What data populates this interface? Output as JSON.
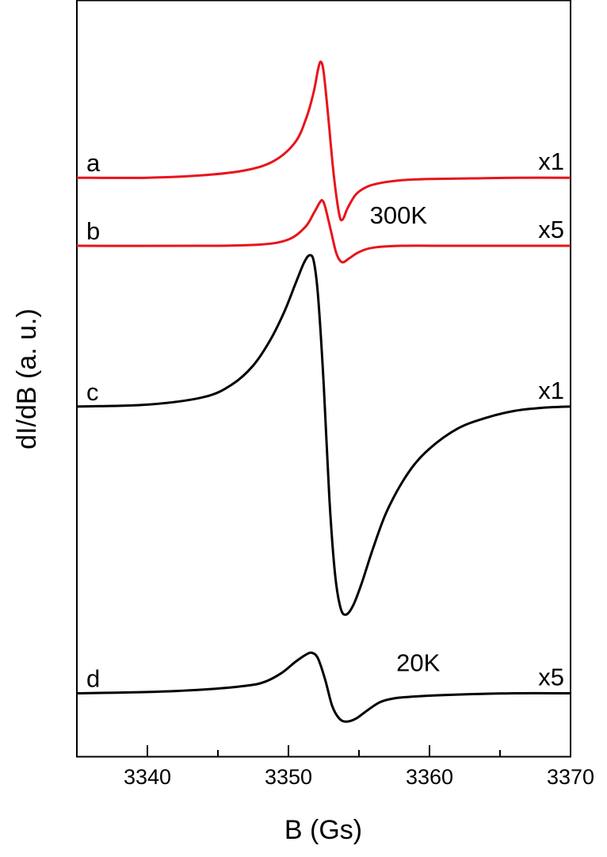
{
  "chart_data": {
    "type": "line",
    "xlabel": "B (Gs)",
    "ylabel": "dI/dB (a. u.)",
    "xlim": [
      3335,
      3370
    ],
    "xticks": [
      3340,
      3350,
      3360,
      3370
    ],
    "grid": false,
    "temperature_labels": [
      {
        "text": "300K",
        "x": 3357.8,
        "y": 8.45
      },
      {
        "text": "20K",
        "x": 3359.2,
        "y": 1.35
      }
    ],
    "series": [
      {
        "name": "a",
        "scale_label": "x1",
        "color": "#e8141b",
        "x": [
          3335,
          3340,
          3344,
          3347,
          3349,
          3350.5,
          3351.3,
          3351.8,
          3352.1,
          3352.3,
          3352.5,
          3352.8,
          3353.2,
          3353.6,
          3353.85,
          3354.2,
          3354.8,
          3355.6,
          3356.6,
          3358,
          3360,
          3363,
          3366,
          3370
        ],
        "y": [
          9.18,
          9.18,
          9.22,
          9.3,
          9.45,
          9.75,
          10.15,
          10.55,
          10.9,
          11.02,
          10.85,
          10.2,
          9.25,
          8.6,
          8.52,
          8.7,
          8.92,
          9.04,
          9.1,
          9.14,
          9.16,
          9.17,
          9.18,
          9.18
        ]
      },
      {
        "name": "b",
        "scale_label": "x5",
        "color": "#e8141b",
        "x": [
          3335,
          3344,
          3348,
          3350,
          3351.2,
          3351.8,
          3352.2,
          3352.4,
          3352.6,
          3353,
          3353.4,
          3353.8,
          3354.3,
          3355,
          3356,
          3358,
          3362,
          3370
        ],
        "y": [
          8.1,
          8.1,
          8.12,
          8.2,
          8.4,
          8.62,
          8.78,
          8.82,
          8.72,
          8.35,
          7.98,
          7.84,
          7.9,
          8.0,
          8.07,
          8.1,
          8.1,
          8.1
        ]
      },
      {
        "name": "c",
        "scale_label": "x1",
        "color": "#000000",
        "x": [
          3335,
          3340,
          3344,
          3346,
          3347.5,
          3348.7,
          3349.7,
          3350.5,
          3351.1,
          3351.5,
          3351.8,
          3352.1,
          3352.5,
          3352.9,
          3353.3,
          3353.7,
          3354.1,
          3354.6,
          3355.2,
          3356,
          3357,
          3358.5,
          3360,
          3362,
          3364,
          3366,
          3368,
          3370
        ],
        "y": [
          5.55,
          5.58,
          5.7,
          5.9,
          6.2,
          6.6,
          7.05,
          7.5,
          7.83,
          7.95,
          7.85,
          7.3,
          5.9,
          4.1,
          2.9,
          2.35,
          2.25,
          2.4,
          2.75,
          3.3,
          3.9,
          4.5,
          4.88,
          5.2,
          5.37,
          5.48,
          5.53,
          5.55
        ]
      },
      {
        "name": "d",
        "scale_label": "x5",
        "color": "#000000",
        "x": [
          3335,
          3340,
          3344,
          3347,
          3348.3,
          3349.5,
          3350.5,
          3351.3,
          3351.7,
          3352.1,
          3352.6,
          3353.1,
          3353.6,
          3354.1,
          3354.8,
          3355.6,
          3356.5,
          3357.5,
          3359,
          3362,
          3366,
          3370
        ],
        "y": [
          1.0,
          1.02,
          1.06,
          1.12,
          1.18,
          1.32,
          1.5,
          1.62,
          1.64,
          1.55,
          1.22,
          0.8,
          0.6,
          0.55,
          0.6,
          0.73,
          0.86,
          0.92,
          0.95,
          0.98,
          1.0,
          1.0
        ]
      }
    ]
  }
}
